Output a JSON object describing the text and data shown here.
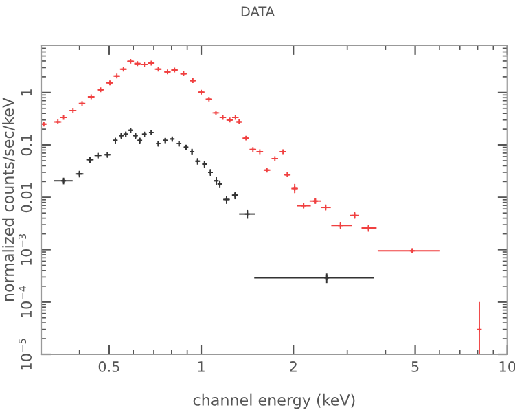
{
  "chart_data": {
    "type": "scatter",
    "title": "DATA",
    "xlabel": "channel energy (keV)",
    "ylabel": "normalized counts/sec/keV",
    "log": "xy",
    "marker": "cross",
    "grid": false,
    "legend": false,
    "xlim": [
      0.3,
      10
    ],
    "xticks": [
      0.5,
      1,
      2,
      5,
      10
    ],
    "ylim": [
      1e-05,
      8
    ],
    "yticks": [
      {
        "value": 1e-05,
        "label": "10$^{−5}$"
      },
      {
        "value": 0.0001,
        "label": "10$^{−4}$"
      },
      {
        "value": 0.001,
        "label": "10$^{−3}$"
      },
      0.01,
      0.1,
      1
    ],
    "series": [
      {
        "color": "#f04040",
        "x": [
          0.306,
          0.34,
          0.355,
          0.381,
          0.408,
          0.437,
          0.469,
          0.503,
          0.53,
          0.557,
          0.588,
          0.619,
          0.652,
          0.687,
          0.724,
          0.776,
          0.818,
          0.876,
          0.939,
          1.0,
          1.06,
          1.117,
          1.177,
          1.24,
          1.293,
          1.33,
          1.4,
          1.475,
          1.554,
          1.64,
          1.74,
          1.85,
          1.91,
          2.02,
          2.16,
          2.36,
          2.55,
          2.85,
          3.17,
          3.52,
          4.89,
          8.1
        ],
        "values": [
          0.25,
          0.275,
          0.336,
          0.455,
          0.62,
          0.83,
          1.13,
          1.53,
          2.07,
          2.8,
          3.95,
          3.57,
          3.43,
          3.64,
          2.8,
          2.48,
          2.69,
          2.29,
          1.69,
          1.02,
          0.75,
          0.41,
          0.336,
          0.3,
          0.336,
          0.275,
          0.135,
          0.082,
          0.074,
          0.033,
          0.055,
          0.074,
          0.027,
          0.0147,
          0.0069,
          0.0085,
          0.0064,
          0.0029,
          0.0045,
          0.0026,
          0.00095,
          3e-05
        ],
        "xerrors": [
          0.006,
          0.009,
          0.009,
          0.01,
          0.01,
          0.011,
          0.012,
          0.013,
          0.013,
          0.014,
          0.015,
          0.015,
          0.016,
          0.017,
          0.018,
          0.019,
          0.02,
          0.022,
          0.023,
          0.025,
          0.026,
          0.028,
          0.029,
          0.031,
          0.032,
          0.033,
          0.035,
          0.037,
          0.039,
          0.041,
          0.043,
          0.046,
          0.048,
          0.05,
          [
            2.06,
            2.28
          ],
          [
            2.26,
            2.46
          ],
          [
            2.46,
            2.65
          ],
          [
            2.66,
            3.1
          ],
          [
            3.06,
            3.28
          ],
          [
            3.34,
            3.74
          ],
          [
            3.77,
            6.03
          ],
          null
        ],
        "errors": [
          null,
          null,
          null,
          null,
          null,
          null,
          null,
          null,
          null,
          null,
          null,
          null,
          null,
          null,
          null,
          null,
          null,
          null,
          null,
          null,
          null,
          null,
          null,
          null,
          null,
          null,
          null,
          null,
          null,
          null,
          null,
          null,
          null,
          [
            0.012,
            0.018
          ],
          [
            0.0061,
            0.0078
          ],
          [
            0.0075,
            0.0096
          ],
          [
            0.0056,
            0.0073
          ],
          [
            0.0025,
            0.0033
          ],
          [
            0.0039,
            0.0052
          ],
          [
            0.0022,
            0.003
          ],
          [
            0.00085,
            0.00106
          ],
          [
            1e-05,
            0.0001
          ]
        ]
      },
      {
        "color": "#333333",
        "x": [
          0.355,
          0.4,
          0.433,
          0.46,
          0.494,
          0.524,
          0.548,
          0.567,
          0.588,
          0.61,
          0.63,
          0.652,
          0.687,
          0.724,
          0.763,
          0.804,
          0.846,
          0.892,
          0.933,
          0.973,
          1.025,
          1.072,
          1.12,
          1.15,
          1.21,
          1.29,
          1.415,
          2.57
        ],
        "values": [
          0.0207,
          0.028,
          0.0524,
          0.063,
          0.065,
          0.122,
          0.15,
          0.16,
          0.19,
          0.15,
          0.122,
          0.16,
          0.173,
          0.106,
          0.122,
          0.13,
          0.106,
          0.09,
          0.074,
          0.049,
          0.043,
          0.03,
          0.0207,
          0.018,
          0.0091,
          0.011,
          0.0048,
          0.00029
        ],
        "xerrors": [
          [
            0.33,
            0.38
          ],
          0.012,
          0.012,
          0.012,
          0.013,
          0.008,
          0.008,
          0.008,
          0.008,
          0.008,
          0.008,
          0.009,
          0.009,
          0.01,
          0.011,
          0.011,
          0.012,
          0.013,
          0.013,
          0.014,
          0.015,
          0.016,
          0.016,
          0.017,
          0.03,
          0.03,
          [
            1.33,
            1.5
          ],
          [
            1.49,
            3.66
          ]
        ],
        "errors": [
          0.003,
          0.004,
          0.007,
          0.008,
          0.008,
          0.016,
          0.018,
          0.02,
          0.022,
          0.018,
          0.016,
          0.019,
          0.02,
          0.013,
          0.015,
          0.015,
          0.013,
          0.011,
          0.01,
          0.007,
          0.006,
          0.0045,
          0.0035,
          0.003,
          0.0016,
          0.0018,
          0.0009,
          6e-05
        ]
      }
    ]
  }
}
